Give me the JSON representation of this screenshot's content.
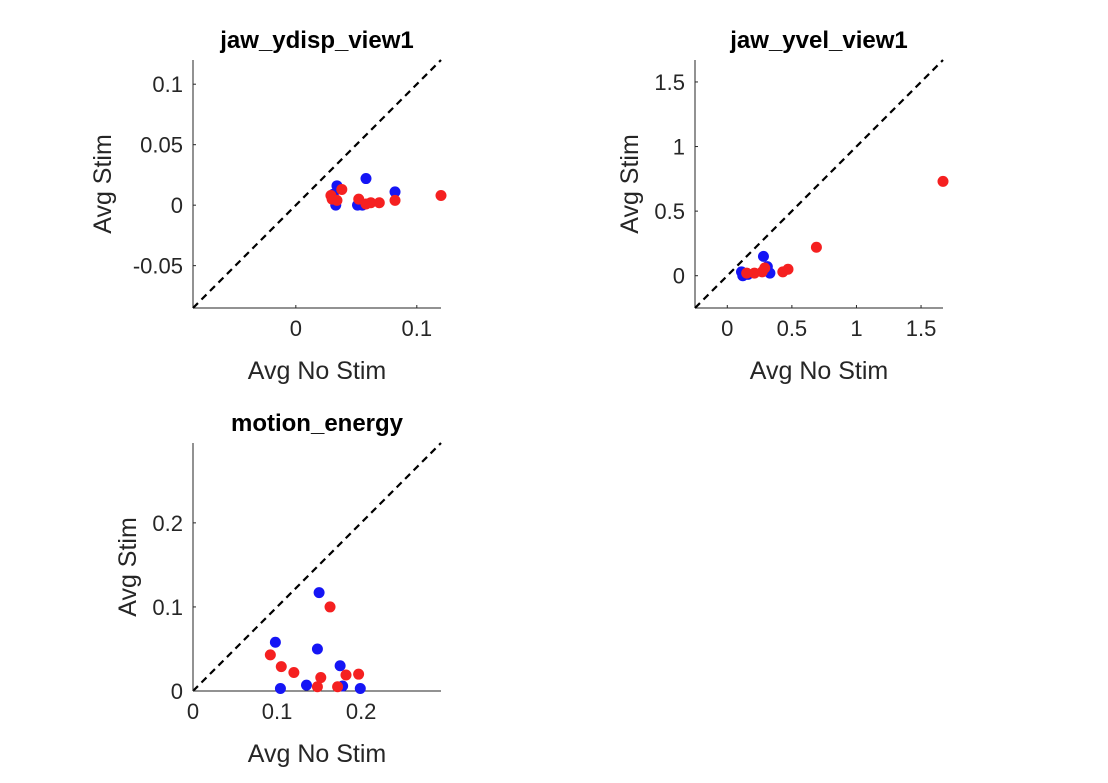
{
  "colors": {
    "series_a": "#1515f5",
    "series_b": "#f52020",
    "diagonal": "#000000",
    "axis": "#262626"
  },
  "chart_data": [
    {
      "type": "scatter",
      "title": "jaw_ydisp_view1",
      "xlabel": "Avg No Stim",
      "ylabel": "Avg Stim",
      "xlim": [
        -0.085,
        0.12
      ],
      "ylim": [
        -0.085,
        0.12
      ],
      "xticks": [
        0,
        0.1
      ],
      "xtick_labels": [
        "0",
        "0.1"
      ],
      "yticks": [
        -0.05,
        0,
        0.05,
        0.1
      ],
      "ytick_labels": [
        "-0.05",
        "0",
        "0.05",
        "0.1"
      ],
      "diagonal": true,
      "series": [
        {
          "color": "blue",
          "points": [
            [
              0.034,
              0.016
            ],
            [
              0.031,
              0.009
            ],
            [
              0.033,
              0.0
            ],
            [
              0.051,
              0.0
            ],
            [
              0.055,
              0.0
            ],
            [
              0.058,
              0.022
            ],
            [
              0.082,
              0.011
            ]
          ]
        },
        {
          "color": "red",
          "points": [
            [
              0.029,
              0.008
            ],
            [
              0.03,
              0.005
            ],
            [
              0.034,
              0.004
            ],
            [
              0.038,
              0.013
            ],
            [
              0.052,
              0.005
            ],
            [
              0.058,
              0.001
            ],
            [
              0.062,
              0.002
            ],
            [
              0.069,
              0.002
            ],
            [
              0.082,
              0.004
            ],
            [
              0.12,
              0.008
            ]
          ]
        }
      ]
    },
    {
      "type": "scatter",
      "title": "jaw_yvel_view1",
      "xlabel": "Avg No Stim",
      "ylabel": "Avg Stim",
      "xlim": [
        -0.25,
        1.67
      ],
      "ylim": [
        -0.25,
        1.67
      ],
      "xticks": [
        0,
        0.5,
        1,
        1.5
      ],
      "xtick_labels": [
        "0",
        "0.5",
        "1",
        "1.5"
      ],
      "yticks": [
        0,
        0.5,
        1,
        1.5
      ],
      "ytick_labels": [
        "0",
        "0.5",
        "1",
        "1.5"
      ],
      "diagonal": true,
      "series": [
        {
          "color": "blue",
          "points": [
            [
              0.11,
              0.03
            ],
            [
              0.12,
              0.0
            ],
            [
              0.16,
              0.01
            ],
            [
              0.28,
              0.15
            ],
            [
              0.31,
              0.07
            ],
            [
              0.33,
              0.02
            ]
          ]
        },
        {
          "color": "red",
          "points": [
            [
              0.15,
              0.02
            ],
            [
              0.21,
              0.02
            ],
            [
              0.27,
              0.03
            ],
            [
              0.29,
              0.06
            ],
            [
              0.43,
              0.03
            ],
            [
              0.47,
              0.05
            ],
            [
              0.69,
              0.22
            ],
            [
              1.67,
              0.73
            ]
          ]
        }
      ]
    },
    {
      "type": "scatter",
      "title": "motion_energy",
      "xlabel": "Avg No Stim",
      "ylabel": "Avg Stim",
      "xlim": [
        0,
        0.295
      ],
      "ylim": [
        0,
        0.295
      ],
      "xticks": [
        0,
        0.1,
        0.2
      ],
      "xtick_labels": [
        "0",
        "0.1",
        "0.2"
      ],
      "yticks": [
        0,
        0.1,
        0.2
      ],
      "ytick_labels": [
        "0",
        "0.1",
        "0.2"
      ],
      "diagonal": true,
      "series": [
        {
          "color": "blue",
          "points": [
            [
              0.098,
              0.058
            ],
            [
              0.104,
              0.003
            ],
            [
              0.135,
              0.007
            ],
            [
              0.15,
              0.117
            ],
            [
              0.148,
              0.05
            ],
            [
              0.175,
              0.03
            ],
            [
              0.178,
              0.006
            ],
            [
              0.199,
              0.003
            ]
          ]
        },
        {
          "color": "red",
          "points": [
            [
              0.092,
              0.043
            ],
            [
              0.105,
              0.029
            ],
            [
              0.12,
              0.022
            ],
            [
              0.148,
              0.005
            ],
            [
              0.152,
              0.016
            ],
            [
              0.163,
              0.1
            ],
            [
              0.182,
              0.019
            ],
            [
              0.172,
              0.005
            ],
            [
              0.197,
              0.02
            ]
          ]
        }
      ]
    }
  ]
}
